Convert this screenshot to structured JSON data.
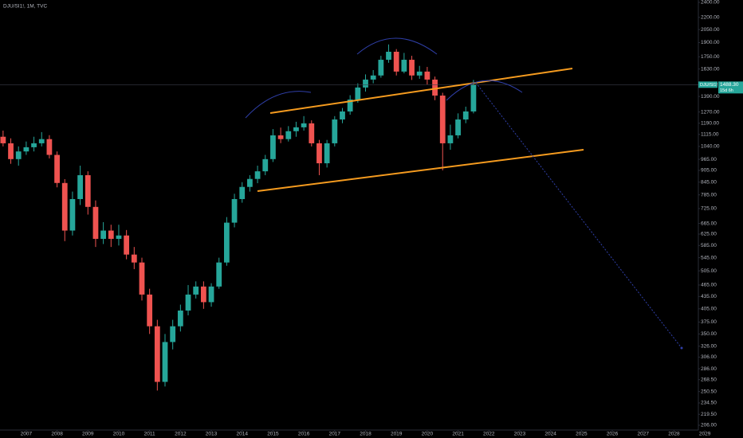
{
  "chart_data": {
    "type": "candlestick",
    "title": "DJU/SI1!, 1M, TVC",
    "log_scale": true,
    "up_color": "#26a69a",
    "down_color": "#ef5350",
    "symbol_tag": "DJU/SI1!",
    "last_price": {
      "value": 1488.3,
      "label": "1488.30"
    },
    "countdown": "15d 6h",
    "x": [
      2006.25,
      2006.5,
      2006.75,
      2007,
      2007.25,
      2007.5,
      2007.75,
      2008,
      2008.25,
      2008.5,
      2008.75,
      2009,
      2009.25,
      2009.5,
      2009.75,
      2010,
      2010.25,
      2010.5,
      2010.75,
      2011,
      2011.25,
      2011.5,
      2011.75,
      2012,
      2012.25,
      2012.5,
      2012.75,
      2013,
      2013.25,
      2013.5,
      2013.75,
      2014,
      2014.25,
      2014.5,
      2014.75,
      2015,
      2015.25,
      2015.5,
      2015.75,
      2016,
      2016.25,
      2016.5,
      2016.75,
      2017,
      2017.25,
      2017.5,
      2017.75,
      2018,
      2018.25,
      2018.5,
      2018.75,
      2019,
      2019.25,
      2019.5,
      2019.75,
      2020,
      2020.25,
      2020.5,
      2020.75,
      2021,
      2021.25,
      2021.5
    ],
    "open": [
      1100,
      1059,
      966,
      1010,
      1035,
      1059,
      1085,
      990,
      841,
      638,
      766,
      880,
      732,
      608,
      638,
      608,
      620,
      555,
      530,
      440,
      366,
      265,
      334,
      366,
      401,
      440,
      461,
      421,
      461,
      530,
      668,
      766,
      822,
      861,
      900,
      966,
      1109,
      1085,
      1136,
      1162,
      1189,
      1059,
      943,
      1059,
      1216,
      1274,
      1365,
      1464,
      1533,
      1570,
      1720,
      1802,
      1606,
      1720,
      1570,
      1606,
      1533,
      1397,
      1059,
      1109,
      1216,
      1274
    ],
    "high": [
      1140,
      1090,
      1040,
      1070,
      1100,
      1130,
      1110,
      1010,
      860,
      800,
      930,
      900,
      760,
      670,
      660,
      660,
      640,
      580,
      545,
      455,
      380,
      350,
      380,
      415,
      465,
      475,
      475,
      470,
      545,
      690,
      790,
      845,
      880,
      930,
      990,
      1150,
      1160,
      1170,
      1200,
      1240,
      1210,
      1080,
      1080,
      1240,
      1300,
      1400,
      1500,
      1580,
      1620,
      1760,
      1880,
      1830,
      1790,
      1760,
      1660,
      1650,
      1560,
      1420,
      1180,
      1260,
      1310,
      1530
    ],
    "low": [
      1040,
      940,
      930,
      990,
      1010,
      1040,
      970,
      820,
      600,
      620,
      740,
      700,
      580,
      590,
      580,
      585,
      540,
      510,
      425,
      350,
      252,
      258,
      320,
      355,
      390,
      430,
      405,
      410,
      455,
      520,
      650,
      750,
      800,
      840,
      880,
      950,
      1060,
      1070,
      1100,
      1140,
      1040,
      880,
      920,
      1040,
      1190,
      1250,
      1340,
      1430,
      1500,
      1550,
      1690,
      1570,
      1590,
      1530,
      1540,
      1490,
      1360,
      905,
      1020,
      1090,
      1190,
      1260
    ],
    "close": [
      1059,
      966,
      1010,
      1035,
      1059,
      1085,
      990,
      841,
      638,
      766,
      880,
      732,
      608,
      638,
      608,
      620,
      555,
      530,
      440,
      366,
      265,
      334,
      366,
      401,
      440,
      461,
      421,
      461,
      530,
      668,
      766,
      822,
      861,
      900,
      966,
      1109,
      1085,
      1136,
      1162,
      1189,
      1059,
      943,
      1059,
      1216,
      1274,
      1365,
      1464,
      1533,
      1570,
      1720,
      1802,
      1606,
      1720,
      1570,
      1606,
      1533,
      1397,
      1059,
      1109,
      1216,
      1274,
      1488.3
    ],
    "xlim": [
      2006.15,
      2028.79
    ],
    "xticks": [
      2007,
      2008,
      2009,
      2010,
      2011,
      2012,
      2013,
      2014,
      2015,
      2016,
      2017,
      2018,
      2019,
      2020,
      2021,
      2022,
      2023,
      2024,
      2025,
      2026,
      2027,
      2028,
      2029
    ],
    "ylim": [
      206,
      2400
    ],
    "yticks": [
      {
        "value": 2400,
        "label": "2400.00"
      },
      {
        "value": 2200,
        "label": "2200.00"
      },
      {
        "value": 2050,
        "label": "2050.00"
      },
      {
        "value": 1900,
        "label": "1900.00"
      },
      {
        "value": 1750,
        "label": "1750.00"
      },
      {
        "value": 1630,
        "label": "1630.00"
      },
      {
        "value": 1390,
        "label": "1390.00"
      },
      {
        "value": 1270,
        "label": "1270.00"
      },
      {
        "value": 1190,
        "label": "1190.00"
      },
      {
        "value": 1115,
        "label": "1115.00"
      },
      {
        "value": 1040,
        "label": "1040.00"
      },
      {
        "value": 965,
        "label": "965.00"
      },
      {
        "value": 905,
        "label": "905.00"
      },
      {
        "value": 845,
        "label": "845.00"
      },
      {
        "value": 785,
        "label": "785.00"
      },
      {
        "value": 725,
        "label": "725.00"
      },
      {
        "value": 665,
        "label": "665.00"
      },
      {
        "value": 625,
        "label": "625.00"
      },
      {
        "value": 585,
        "label": "585.00"
      },
      {
        "value": 545,
        "label": "545.00"
      },
      {
        "value": 505,
        "label": "505.00"
      },
      {
        "value": 465,
        "label": "465.00"
      },
      {
        "value": 435,
        "label": "435.00"
      },
      {
        "value": 405,
        "label": "405.00"
      },
      {
        "value": 375,
        "label": "375.00"
      },
      {
        "value": 350,
        "label": "350.00"
      },
      {
        "value": 326,
        "label": "326.00"
      },
      {
        "value": 306,
        "label": "306.00"
      },
      {
        "value": 286,
        "label": "286.00"
      },
      {
        "value": 268.5,
        "label": "268.50"
      },
      {
        "value": 250.5,
        "label": "250.50"
      },
      {
        "value": 234.5,
        "label": "234.50"
      },
      {
        "value": 219.5,
        "label": "219.50"
      },
      {
        "value": 206,
        "label": "206.00"
      }
    ]
  }
}
